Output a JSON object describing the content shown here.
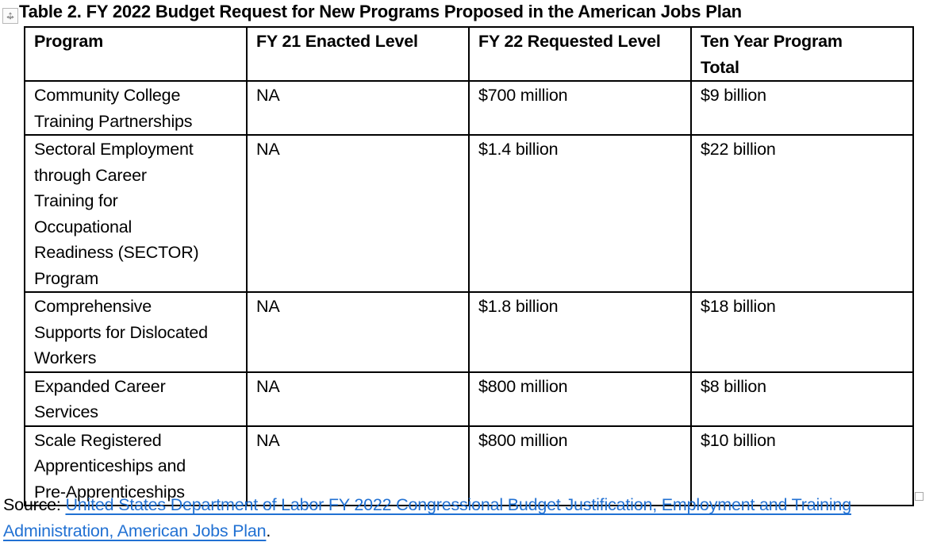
{
  "document": {
    "title": "Table 2. FY 2022 Budget Request for New Programs Proposed in the American Jobs Plan"
  },
  "table": {
    "columns": {
      "program": "Program",
      "fy21": "FY 21 Enacted Level",
      "fy22": "FY 22 Requested Level",
      "ten_year": "Ten Year Program\nTotal"
    },
    "rows": [
      {
        "program": "Community College\nTraining Partnerships",
        "fy21": "NA",
        "fy22": "$700 million",
        "ten_year": "$9 billion"
      },
      {
        "program": "Sectoral Employment\nthrough Career\nTraining for\nOccupational\nReadiness (SECTOR)\nProgram",
        "fy21": "NA",
        "fy22": "$1.4 billion",
        "ten_year": "$22 billion"
      },
      {
        "program": "Comprehensive\nSupports for Dislocated\nWorkers",
        "fy21": "NA",
        "fy22": "$1.8 billion",
        "ten_year": "$18 billion"
      },
      {
        "program": "Expanded Career\nServices",
        "fy21": "NA",
        "fy22": "$800 million",
        "ten_year": "$8 billion"
      },
      {
        "program": "Scale Registered\nApprenticeships and\nPre-Apprenticeships",
        "fy21": "NA",
        "fy22": "$800 million",
        "ten_year": "$10 billion"
      }
    ]
  },
  "source": {
    "prefix": "Source: ",
    "link_text": "United States Department of Labor FY 2022 Congressional Budget Justification, Employment and Training Administration, American Jobs Plan",
    "suffix": "."
  },
  "icons": {
    "move_handle_horizontal_arrow": "↔",
    "move_handle_vertical_arrow": "↕"
  },
  "colors": {
    "link_blue": "#2171D3",
    "table_border": "#000000",
    "handle_gray": "#A9A9A9"
  }
}
